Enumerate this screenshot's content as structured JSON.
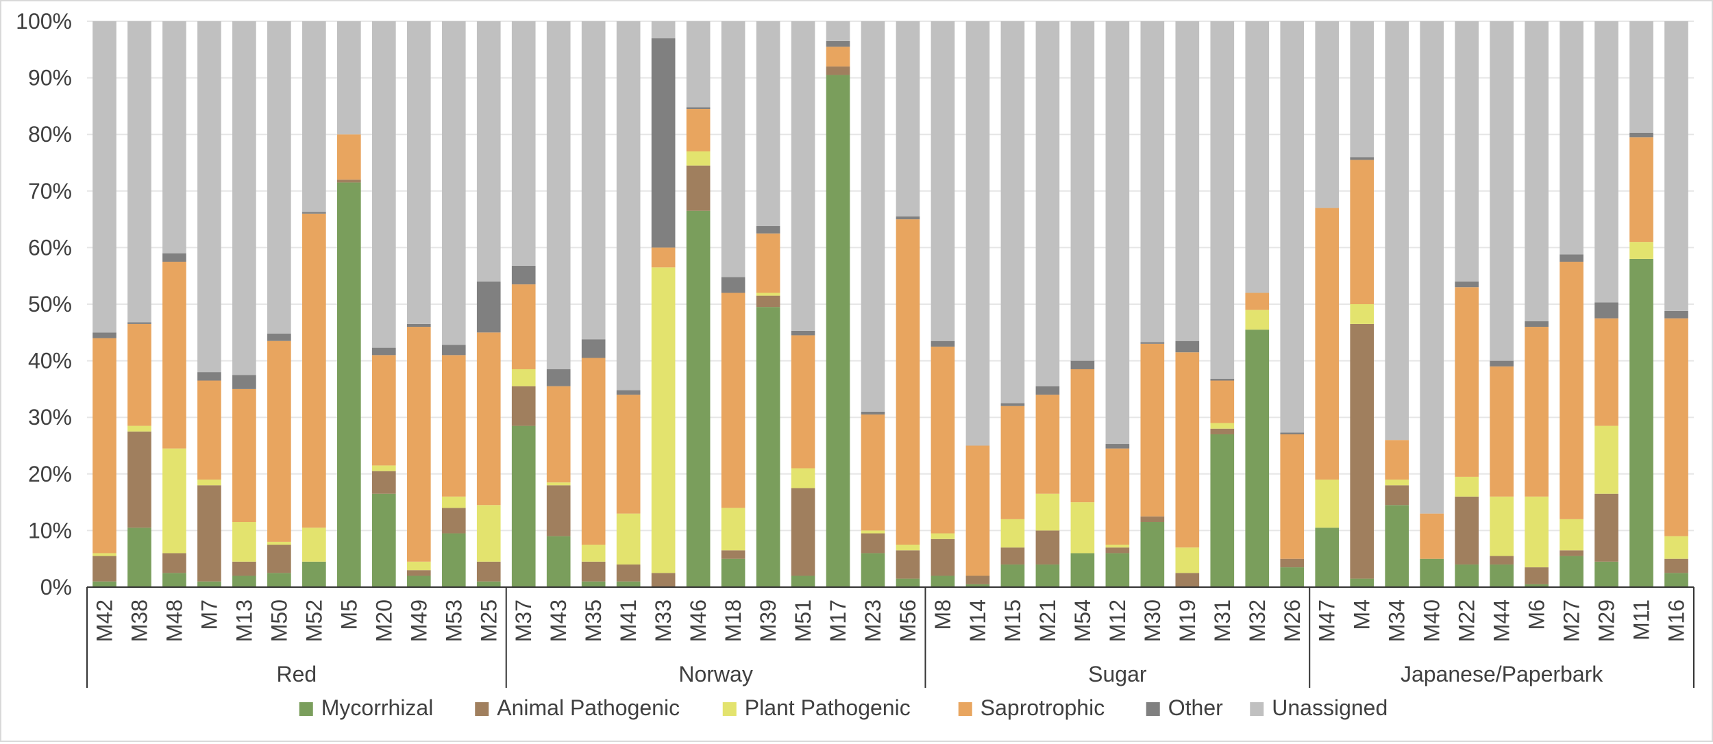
{
  "chart_data": {
    "type": "bar",
    "stacked": true,
    "normalized": true,
    "ylim": [
      0,
      100
    ],
    "y_ticks": [
      "0%",
      "10%",
      "20%",
      "30%",
      "40%",
      "50%",
      "60%",
      "70%",
      "80%",
      "90%",
      "100%"
    ],
    "grid": true,
    "legend_position": "bottom",
    "groups": [
      {
        "label": "Red",
        "categories": [
          "M42",
          "M38",
          "M48",
          "M7",
          "M13",
          "M50",
          "M52",
          "M5",
          "M20",
          "M49",
          "M53",
          "M25"
        ]
      },
      {
        "label": "Norway",
        "categories": [
          "M37",
          "M43",
          "M35",
          "M41",
          "M33",
          "M46",
          "M18",
          "M39",
          "M51",
          "M17",
          "M23",
          "M56"
        ]
      },
      {
        "label": "Sugar",
        "categories": [
          "M8",
          "M14",
          "M15",
          "M21",
          "M54",
          "M12",
          "M30",
          "M19",
          "M31",
          "M32",
          "M26"
        ]
      },
      {
        "label": "Japanese/Paperbark",
        "categories": [
          "M47",
          "M4",
          "M34",
          "M40",
          "M22",
          "M44",
          "M6",
          "M27",
          "M29",
          "M11",
          "M16"
        ]
      }
    ],
    "series": [
      {
        "name": "Mycorrhizal",
        "color": "#7a9e5c",
        "values": [
          1,
          10.5,
          2.5,
          1,
          2,
          2.5,
          4.5,
          71.5,
          16.5,
          2,
          9.5,
          1,
          28.5,
          9,
          1,
          1,
          0,
          66.5,
          5,
          49.5,
          2,
          90.5,
          6,
          1.5,
          2,
          0.5,
          4,
          4,
          6,
          6,
          11.5,
          0,
          27,
          45.5,
          3.5,
          10.5,
          1.5,
          14.5,
          5,
          4,
          4,
          0.5,
          5.5,
          4.5,
          58,
          2.5
        ]
      },
      {
        "name": "Animal Pathogenic",
        "color": "#a07f5e",
        "values": [
          4.5,
          17,
          3.5,
          17,
          2.5,
          5,
          0,
          0.5,
          4,
          1,
          4.5,
          3.5,
          7,
          9,
          3.5,
          3,
          2.5,
          8,
          1.5,
          2,
          15.5,
          1.5,
          3.5,
          5,
          6.5,
          1.5,
          3,
          6,
          0,
          1,
          1,
          2.5,
          1,
          0,
          1.5,
          0,
          45,
          3.5,
          0,
          12,
          1.5,
          3,
          1,
          12,
          0,
          2.5
        ]
      },
      {
        "name": "Plant Pathogenic",
        "color": "#e3e36e",
        "values": [
          0.5,
          1,
          18.5,
          1,
          7,
          0.5,
          6,
          0,
          1,
          1.5,
          2,
          10,
          3,
          0.5,
          3,
          9,
          54,
          2.5,
          7.5,
          0.5,
          3.5,
          0,
          0.5,
          1,
          1,
          0,
          5,
          6.5,
          9,
          0.5,
          0,
          4.5,
          1,
          3.5,
          0,
          8.5,
          3.5,
          1,
          0,
          3.5,
          10.5,
          12.5,
          5.5,
          12,
          3,
          4
        ]
      },
      {
        "name": "Saprotrophic",
        "color": "#e8a55f",
        "values": [
          38,
          18,
          33,
          17.5,
          23.5,
          35.5,
          55.5,
          8,
          19.5,
          41.5,
          25,
          30.5,
          15,
          17,
          33,
          21,
          3.5,
          7.5,
          38,
          10.5,
          23.5,
          3.5,
          20.5,
          57.5,
          33,
          23,
          20,
          17.5,
          23.5,
          17,
          30.5,
          34.5,
          7.5,
          3,
          22,
          48,
          25.5,
          7,
          8,
          33.5,
          23,
          30,
          45.5,
          19,
          18.5,
          38.5
        ]
      },
      {
        "name": "Other",
        "color": "#808080",
        "values": [
          1,
          0.3,
          1.5,
          1.5,
          2.5,
          1.3,
          0.3,
          0,
          1.3,
          0.5,
          1.8,
          9,
          3.3,
          3,
          3.3,
          0.8,
          37,
          0.3,
          2.8,
          1.3,
          0.8,
          1,
          0.5,
          0.5,
          1,
          0,
          0.5,
          1.5,
          1.5,
          0.8,
          0.3,
          2,
          0.3,
          0,
          0.3,
          0,
          0.5,
          0,
          0,
          1,
          1,
          1,
          1.3,
          2.8,
          0.8,
          1.3
        ]
      }
    ],
    "residual_series": {
      "name": "Unassigned",
      "color": "#c0c0c0"
    }
  }
}
